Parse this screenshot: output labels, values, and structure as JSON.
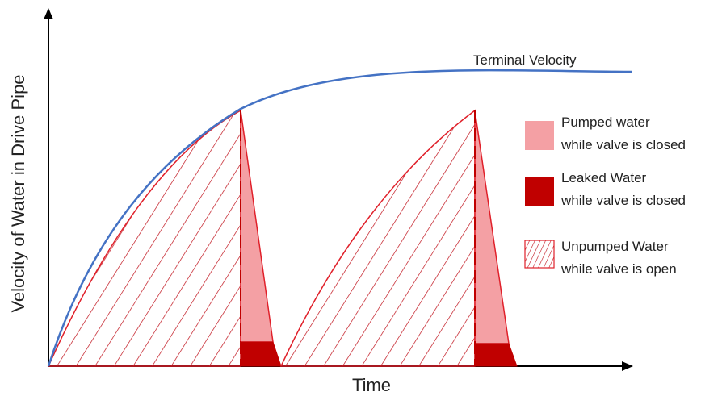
{
  "diagram": {
    "x_axis_label": "Time",
    "y_axis_label": "Velocity of Water in Drive Pipe",
    "curve_label": "Terminal Velocity",
    "legend": [
      {
        "line1": "Pumped water",
        "line2": "while valve is closed",
        "swatch": "pumped"
      },
      {
        "line1": "Leaked Water",
        "line2": "while valve is closed",
        "swatch": "leaked"
      },
      {
        "line1": "Unpumped Water",
        "line2": "while valve is open",
        "swatch": "unpumped"
      }
    ]
  },
  "colors": {
    "axis": "#000000",
    "terminal_curve": "#4472c4",
    "outline": "#e0202a",
    "hatch": "#c0101a",
    "pumped": "#f4a0a4",
    "leaked": "#c00000",
    "dash": "#c00000"
  }
}
